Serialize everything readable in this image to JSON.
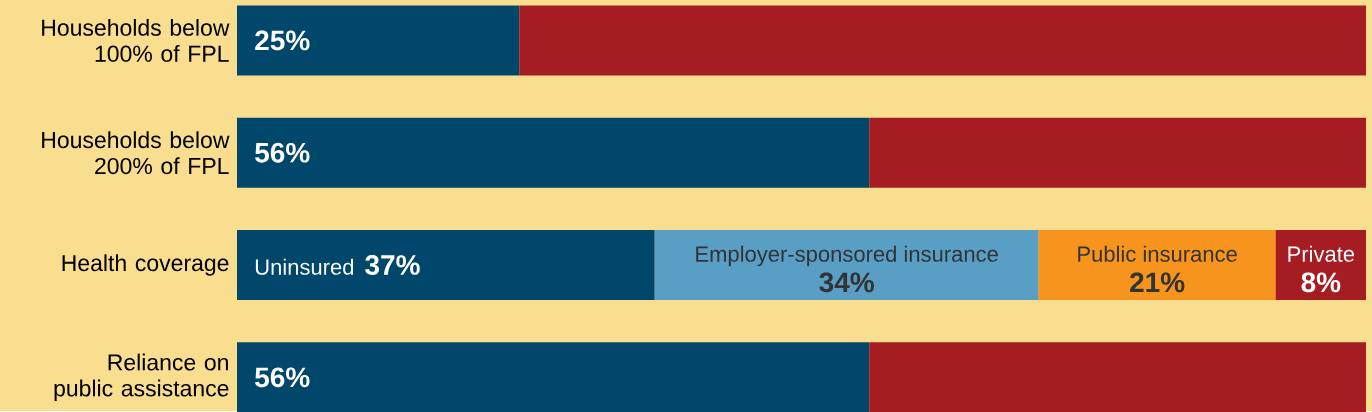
{
  "chart_data": {
    "type": "bar",
    "orientation": "horizontal",
    "stacked": true,
    "categories": [
      "Households below 100% of FPL",
      "Households below 200% of FPL",
      "Health coverage",
      "Reliance on public assistance"
    ],
    "series": [
      {
        "color": "#00476b",
        "values": [
          25,
          56,
          null,
          56
        ],
        "value_labels": [
          "25%",
          "56%",
          null,
          "56%"
        ]
      },
      {
        "name": "Uninsured",
        "color": "#00476b",
        "values": [
          null,
          null,
          37,
          null
        ],
        "value_labels": [
          null,
          null,
          "37%",
          null
        ]
      },
      {
        "name": "Employer-sponsored insurance",
        "color": "#589ec5",
        "values": [
          null,
          null,
          34,
          null
        ],
        "value_labels": [
          null,
          null,
          "34%",
          null
        ]
      },
      {
        "name": "Public insurance",
        "color": "#f7941d",
        "values": [
          null,
          null,
          21,
          null
        ],
        "value_labels": [
          null,
          null,
          "21%",
          null
        ]
      },
      {
        "name": "Private",
        "color": "#a51c22",
        "values": [
          null,
          null,
          8,
          null
        ],
        "value_labels": [
          null,
          null,
          "8%",
          null
        ]
      },
      {
        "color": "#a51c22",
        "values": [
          75,
          44,
          null,
          44
        ]
      }
    ]
  }
}
